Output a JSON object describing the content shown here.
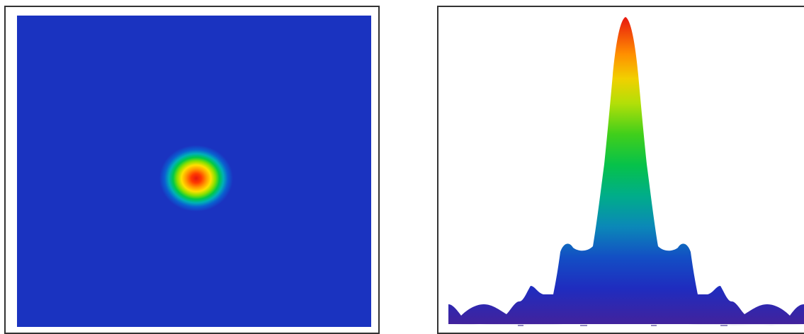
{
  "figure": {
    "left_panel": "airy-disk-intensity-map",
    "right_panel": "airy-pattern-3d-profile"
  },
  "colors": {
    "frame": "#333333",
    "background": "#43229b",
    "colormap": [
      "#43229b",
      "#1a33c0",
      "#00b0b8",
      "#00c848",
      "#ffe000",
      "#ff9a00",
      "#e5160f"
    ]
  }
}
